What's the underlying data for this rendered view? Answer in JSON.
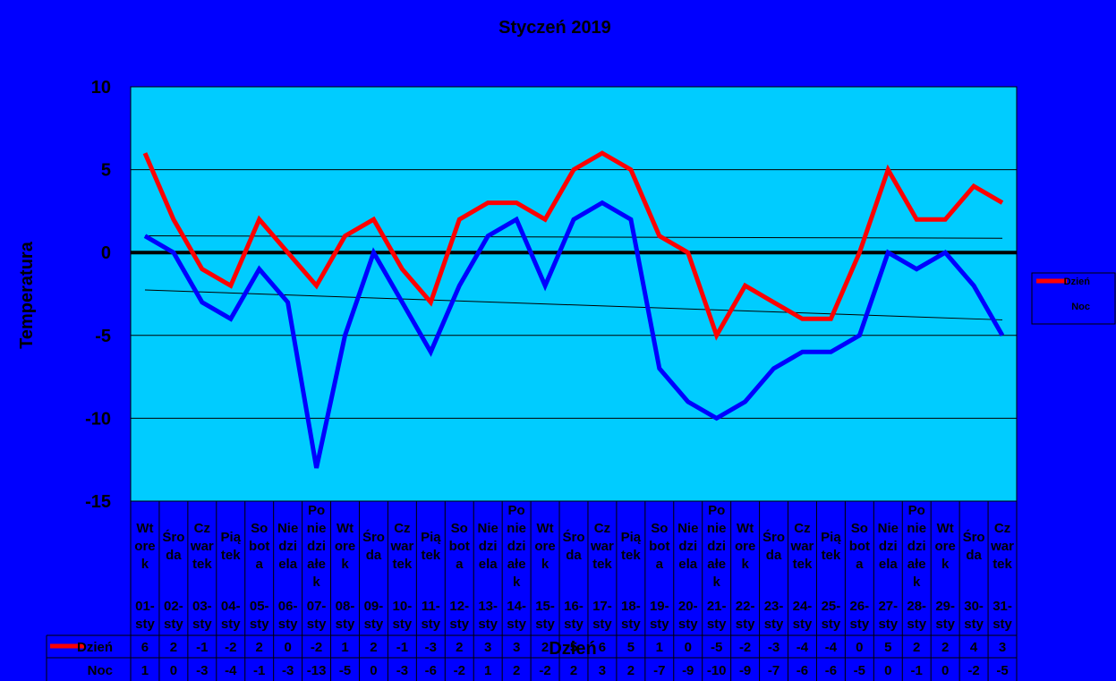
{
  "chart_data": {
    "type": "line",
    "title": "Styczeń 2019",
    "xlabel": "Dzień",
    "ylabel": "Temperatura",
    "ylim": [
      -15,
      10
    ],
    "yticks": [
      10,
      5,
      0,
      -5,
      -10,
      -15
    ],
    "grid": true,
    "legend_placement": "right",
    "days": [
      "Wt ore k",
      "Śro da",
      "Cz war tek",
      "Pią tek",
      "So bot a",
      "Nie dzi ela",
      "Po nie dzi ałe k",
      "Wt ore k",
      "Śro da",
      "Cz war tek",
      "Pią tek",
      "So bot a",
      "Nie dzi ela",
      "Po nie dzi ałe k",
      "Wt ore k",
      "Śro da",
      "Cz war tek",
      "Pią tek",
      "So bot a",
      "Nie dzi ela",
      "Po nie dzi ałe k",
      "Wt ore k",
      "Śro da",
      "Cz war tek",
      "Pią tek",
      "So bot a",
      "Nie dzi ela",
      "Po nie dzi ałe k",
      "Wt ore k",
      "Śro da",
      "Cz war tek"
    ],
    "categories": [
      "01-sty",
      "02-sty",
      "03-sty",
      "04-sty",
      "05-sty",
      "06-sty",
      "07-sty",
      "08-sty",
      "09-sty",
      "10-sty",
      "11-sty",
      "12-sty",
      "13-sty",
      "14-sty",
      "15-sty",
      "16-sty",
      "17-sty",
      "18-sty",
      "19-sty",
      "20-sty",
      "21-sty",
      "22-sty",
      "23-sty",
      "24-sty",
      "25-sty",
      "26-sty",
      "27-sty",
      "28-sty",
      "29-sty",
      "30-sty",
      "31-sty"
    ],
    "series": [
      {
        "name": "Dzień",
        "table_label": "Dzień",
        "color": "#ff0000",
        "values": [
          6,
          2,
          -1,
          -2,
          2,
          0,
          -2,
          1,
          2,
          -1,
          -3,
          2,
          3,
          3,
          2,
          5,
          6,
          5,
          1,
          0,
          -5,
          -2,
          -3,
          -4,
          -4,
          0,
          5,
          2,
          2,
          4,
          3
        ]
      },
      {
        "name": "Noc",
        "table_label": "Noc",
        "color": "#0000ff",
        "values": [
          1,
          0,
          -3,
          -4,
          -1,
          -3,
          -13,
          -5,
          0,
          -3,
          -6,
          -2,
          1,
          2,
          -2,
          2,
          3,
          2,
          -7,
          -9,
          -10,
          -9,
          -7,
          -6,
          -6,
          -5,
          0,
          -1,
          0,
          -2,
          -5
        ]
      }
    ],
    "trendlines": true,
    "colors": {
      "background": "#0000ff",
      "plot_area": "#00ccff",
      "zero_line": "#000000"
    }
  }
}
